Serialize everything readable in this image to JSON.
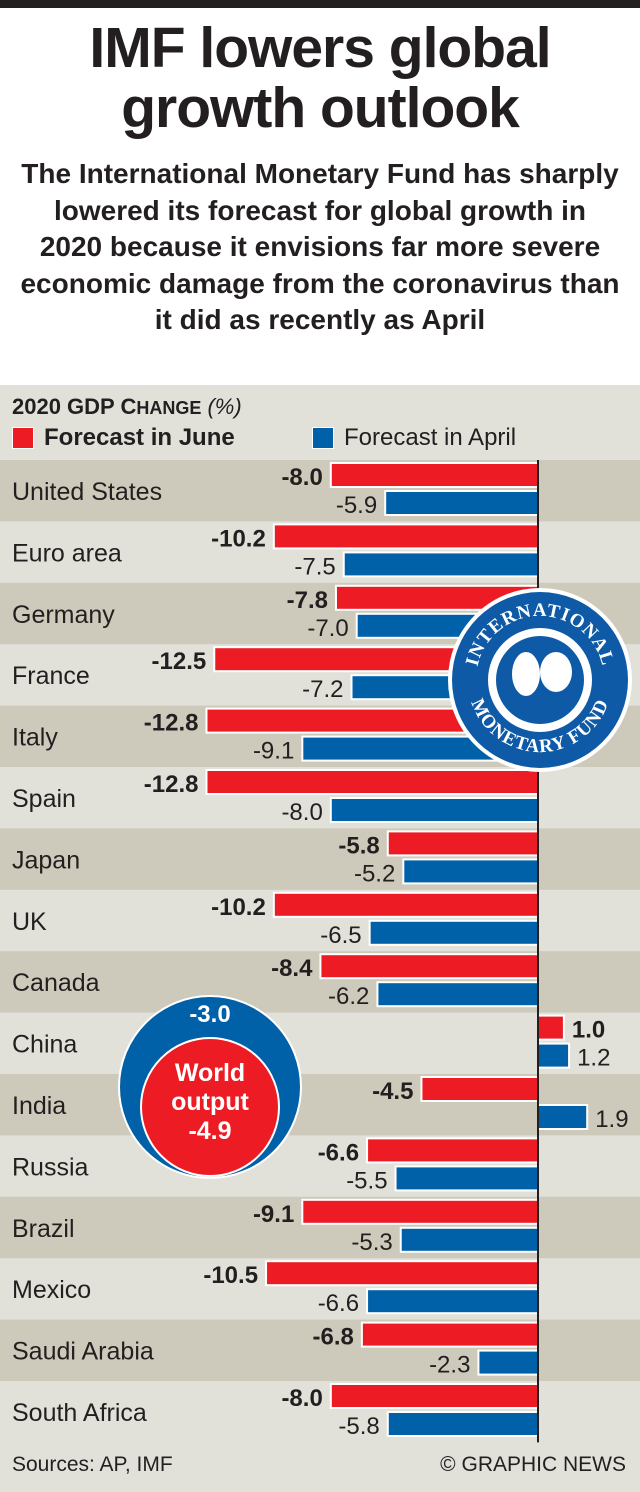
{
  "title": "IMF lowers global growth outlook",
  "subtitle": "The International Monetary Fund has sharply lowered its forecast for global growth in 2020 because it envisions far more severe economic damage from the coronavirus than it did as recently as April",
  "logo_text": "INTERNATIONAL MONETARY FUND",
  "world": {
    "label_line1": "World",
    "label_line2": "output",
    "june": "-4.9",
    "april": "-3.0"
  },
  "footer": {
    "sources": "Sources: AP, IMF",
    "copyright": "© GRAPHIC NEWS"
  },
  "colors": {
    "june": "#ed1c24",
    "april": "#0060a8",
    "row_dark": "#cdcabb",
    "row_light": "#e1e1da"
  },
  "chart_data": {
    "type": "bar",
    "orientation": "horizontal",
    "title_main": "2020 GDP C",
    "title_sc": "HANGE",
    "title_unit": "(%)",
    "categories": [
      "United States",
      "Euro area",
      "Germany",
      "France",
      "Italy",
      "Spain",
      "Japan",
      "UK",
      "Canada",
      "China",
      "India",
      "Russia",
      "Brazil",
      "Mexico",
      "Saudi Arabia",
      "South Africa"
    ],
    "series": [
      {
        "name": "Forecast in June",
        "values": [
          -8.0,
          -10.2,
          -7.8,
          -12.5,
          -12.8,
          -12.8,
          -5.8,
          -10.2,
          -8.4,
          1.0,
          -4.5,
          -6.6,
          -9.1,
          -10.5,
          -6.8,
          -8.0
        ]
      },
      {
        "name": "Forecast in April",
        "values": [
          -5.9,
          -7.5,
          -7.0,
          -7.2,
          -9.1,
          -8.0,
          -5.2,
          -6.5,
          -6.2,
          1.2,
          1.9,
          -5.5,
          -5.3,
          -6.6,
          -2.3,
          -5.8
        ]
      }
    ],
    "xlim": [
      -12.8,
      3.5
    ]
  }
}
